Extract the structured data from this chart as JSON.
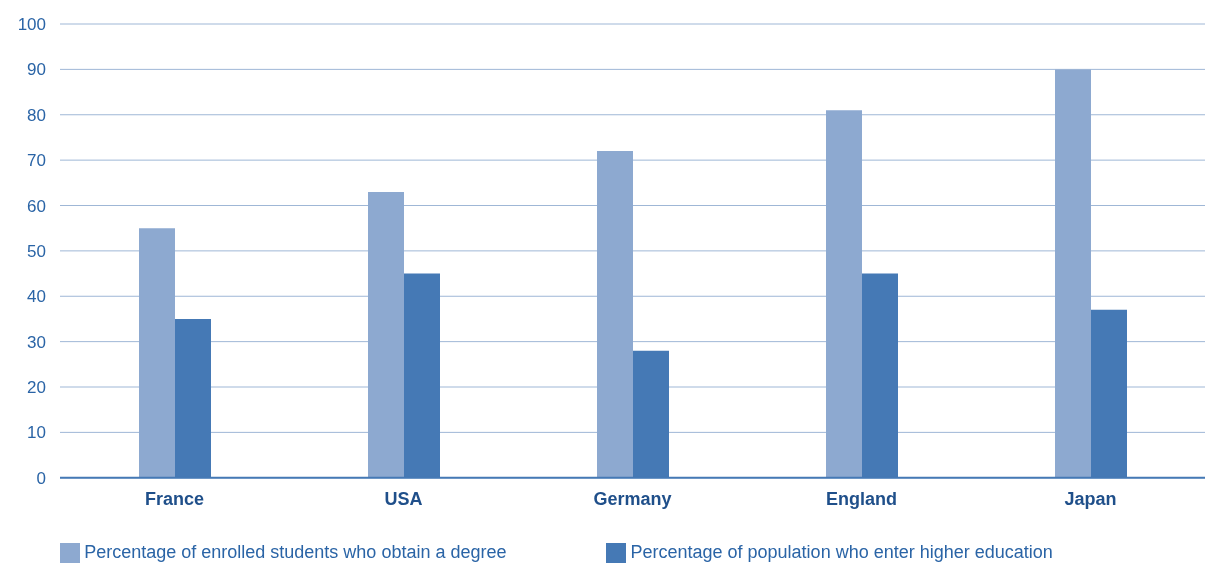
{
  "chart_data": {
    "type": "bar",
    "categories": [
      "France",
      "USA",
      "Germany",
      "England",
      "Japan"
    ],
    "series": [
      {
        "name": "Percentage of enrolled students who obtain a degree",
        "color": "#8da9d0",
        "values": [
          55,
          63,
          72,
          81,
          90
        ]
      },
      {
        "name": "Percentage of population who enter higher education",
        "color": "#4579b5",
        "values": [
          35,
          45,
          28,
          45,
          37
        ]
      }
    ],
    "ylim": [
      0,
      100
    ],
    "yticks": [
      0,
      10,
      20,
      30,
      40,
      50,
      60,
      70,
      80,
      90,
      100
    ],
    "grid": "y",
    "legend": "bottom"
  }
}
